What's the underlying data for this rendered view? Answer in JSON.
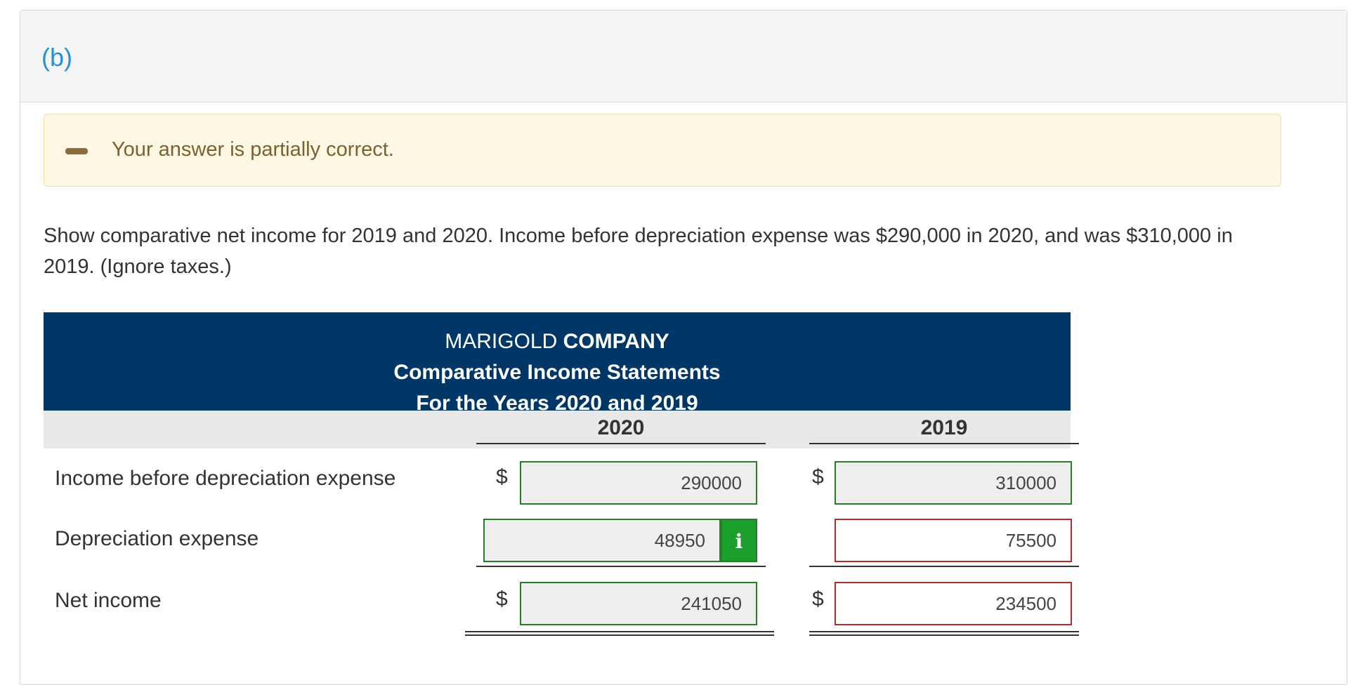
{
  "part": {
    "label": "(b)"
  },
  "alert": {
    "message": "Your answer is partially correct."
  },
  "question": {
    "text": "Show comparative net income for 2019 and 2020. Income before depreciation expense was $290,000 in 2020, and was $310,000 in 2019. (Ignore taxes.)"
  },
  "statement": {
    "company_prefix": "MARIGOLD",
    "company_bold": "COMPANY",
    "title": "Comparative Income Statements",
    "period": "For the Years 2020 and 2019",
    "columns": [
      "2020",
      "2019"
    ],
    "currency_symbol": "$",
    "rows": [
      {
        "label": "Income before depreciation expense",
        "values": [
          "290000",
          "310000"
        ],
        "status": [
          "correct",
          "correct"
        ]
      },
      {
        "label": "Depreciation expense",
        "values": [
          "48950",
          "75500"
        ],
        "status": [
          "correct",
          "incorrect"
        ]
      },
      {
        "label": "Net income",
        "values": [
          "241050",
          "234500"
        ],
        "status": [
          "correct",
          "incorrect"
        ]
      }
    ],
    "info_icon_glyph": "i"
  },
  "colors": {
    "header_bg": "#003767",
    "correct_border": "#2a7d2a",
    "incorrect_border": "#b22a2a",
    "alert_bg": "#fdf7e3",
    "info_button": "#1a9e2c",
    "part_label": "#2a90d8"
  }
}
